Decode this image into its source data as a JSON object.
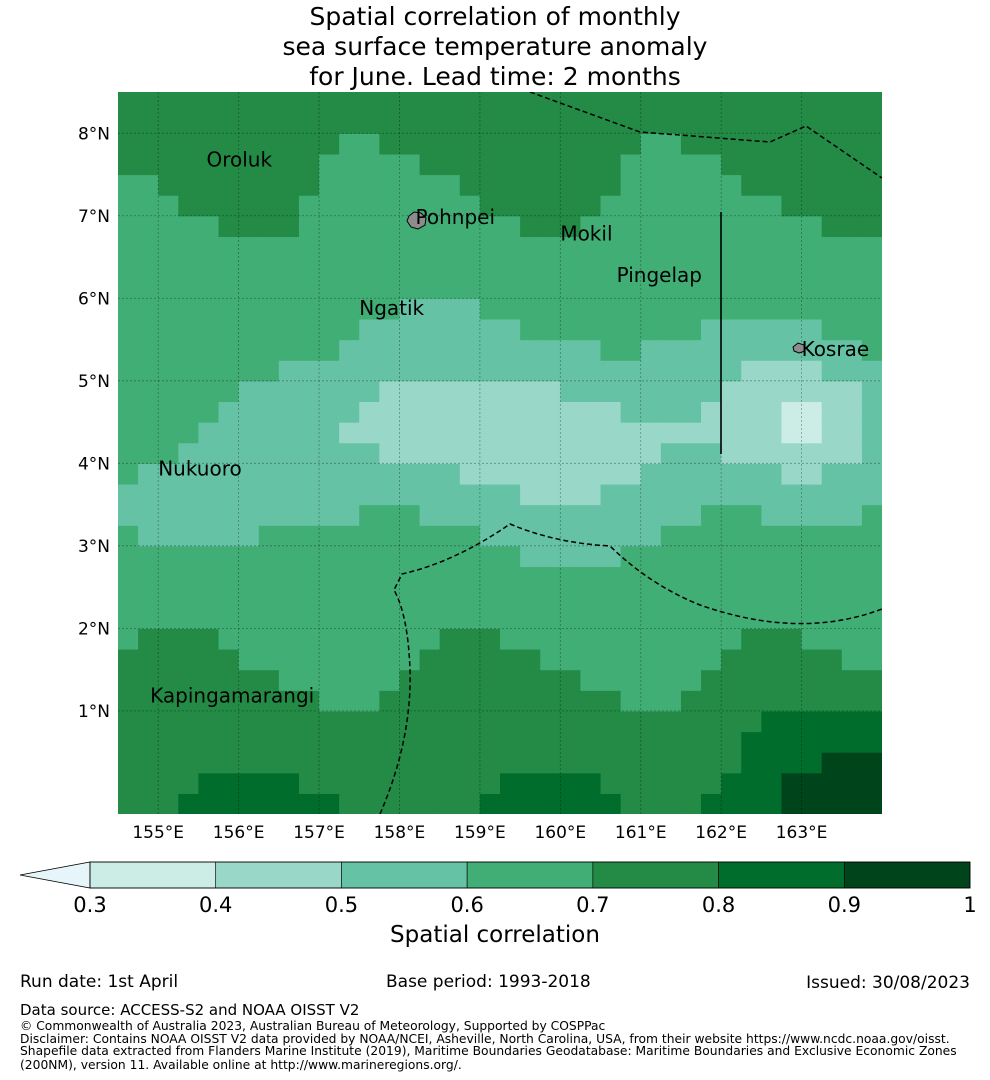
{
  "title": {
    "line1": "Spatial correlation of monthly",
    "line2": "sea surface temperature anomaly",
    "line3": "for June. Lead time: 2 months"
  },
  "map": {
    "lon_range": [
      154.5,
      164.0
    ],
    "lat_range": [
      -0.25,
      8.5
    ],
    "lon_ticks": [
      155,
      156,
      157,
      158,
      159,
      160,
      161,
      162,
      163
    ],
    "lon_tick_labels": [
      "155°E",
      "156°E",
      "157°E",
      "158°E",
      "159°E",
      "160°E",
      "161°E",
      "162°E",
      "163°E"
    ],
    "lat_ticks": [
      1,
      2,
      3,
      4,
      5,
      6,
      7,
      8
    ],
    "lat_tick_labels": [
      "1°N",
      "2°N",
      "3°N",
      "4°N",
      "5°N",
      "6°N",
      "7°N",
      "8°N"
    ],
    "gridlines": true,
    "places": [
      {
        "name": "Oroluk",
        "lon": 155.6,
        "lat": 7.6
      },
      {
        "name": "Pohnpei",
        "lon": 158.2,
        "lat": 6.9
      },
      {
        "name": "Mokil",
        "lon": 160.0,
        "lat": 6.7
      },
      {
        "name": "Pingelap",
        "lon": 160.7,
        "lat": 6.2
      },
      {
        "name": "Ngatik",
        "lon": 157.5,
        "lat": 5.8
      },
      {
        "name": "Kosrae",
        "lon": 163.0,
        "lat": 5.3
      },
      {
        "name": "Nukuoro",
        "lon": 155.0,
        "lat": 3.85
      },
      {
        "name": "Kapingamarangi",
        "lon": 154.9,
        "lat": 1.1
      }
    ],
    "boundary_line": {
      "lon": 162.0,
      "lat": [
        4.0,
        7.0
      ]
    }
  },
  "colorbar": {
    "ticks": [
      "0.3",
      "0.4",
      "0.5",
      "0.6",
      "0.7",
      "0.8",
      "0.9",
      "1"
    ],
    "colors": [
      "#ccece6",
      "#99d8c9",
      "#66c2a4",
      "#41ae76",
      "#238b45",
      "#006d2c",
      "#00441b"
    ],
    "extend_low_color": "#e5f5f9",
    "label": "Spatial correlation"
  },
  "footer": {
    "run_date": "Run date: 1st April",
    "base_period": "Base period: 1993-2018",
    "issued": "Issued: 30/08/2023",
    "data_source": "Data source: ACCESS-S2 and NOAA OISST V2",
    "copyright": "© Commonwealth of Australia 2023, Australian Bureau of Meteorology, Supported by COSPPac",
    "disclaimer1": "Disclaimer: Contains NOAA OISST V2 data provided by NOAA/NCEI, Asheville, North Carolina, USA, from their website https://www.ncdc.noaa.gov/oisst.",
    "disclaimer2": "Shapefile data extracted from Flanders Marine Institute (2019), Maritime Boundaries Geodatabase: Maritime Boundaries and Exclusive Economic Zones",
    "disclaimer3": "(200NM), version 11. Available online at http://www.marineregions.org/."
  }
}
